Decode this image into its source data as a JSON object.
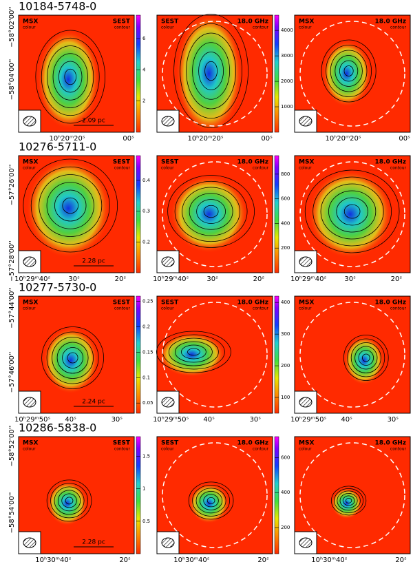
{
  "rows": [
    {
      "title": "10184-5748-0",
      "ra_labels": [
        "10ʰ20ᵐ20ˢ",
        "00ˢ"
      ],
      "dec_labels": [
        "−58°02'00''",
        "−58°04'00''"
      ],
      "scale_bar": "2.09 pc",
      "colorbars": [
        {
          "ylim": [
            0,
            7.5
          ],
          "yticks": [
            2,
            4,
            6
          ]
        },
        {
          "ylim": [
            0,
            4600
          ],
          "yticks": [
            1000,
            2000,
            3000,
            4000
          ]
        }
      ]
    },
    {
      "title": "10276-5711-0",
      "ra_labels": [
        "10ʰ29ᵐ40ˢ",
        "30ˢ",
        "20ˢ"
      ],
      "dec_labels": [
        "−57°26'00''",
        "−57°28'00''"
      ],
      "scale_bar": "2.28 pc",
      "colorbars": [
        {
          "ylim": [
            0.1,
            0.48
          ],
          "yticks": [
            0.2,
            0.3,
            0.4
          ]
        },
        {
          "ylim": [
            0,
            950
          ],
          "yticks": [
            200,
            400,
            600,
            800
          ]
        }
      ]
    },
    {
      "title": "10277-5730-0",
      "ra_labels": [
        "10ʰ29ᵐ50ˢ",
        "40ˢ",
        "30ˢ"
      ],
      "dec_labels": [
        "−57°44'00''",
        "−57°46'00''"
      ],
      "scale_bar": "2.24 pc",
      "colorbars": [
        {
          "ylim": [
            0.03,
            0.26
          ],
          "yticks": [
            0.05,
            0.1,
            0.15,
            0.2,
            0.25
          ]
        },
        {
          "ylim": [
            50,
            420
          ],
          "yticks": [
            100,
            200,
            300,
            400
          ]
        }
      ]
    },
    {
      "title": "10286-5838-0",
      "ra_labels": [
        "10ʰ30ᵐ40ˢ",
        "20ˢ"
      ],
      "dec_labels": [
        "−58°52'00''",
        "−58°54'00''"
      ],
      "scale_bar": "2.28 pc",
      "colorbars": [
        {
          "ylim": [
            0,
            1.8
          ],
          "yticks": [
            0.5,
            1,
            1.5
          ]
        },
        {
          "ylim": [
            50,
            720
          ],
          "yticks": [
            200,
            400,
            600
          ]
        }
      ]
    }
  ],
  "panel_labels": [
    [
      "MSX",
      "colour",
      "SEST",
      "contour"
    ],
    [
      "SEST",
      "colour",
      "18.0 GHz",
      "contour"
    ],
    [
      "MSX",
      "colour",
      "18.0 GHz",
      "contour"
    ]
  ]
}
